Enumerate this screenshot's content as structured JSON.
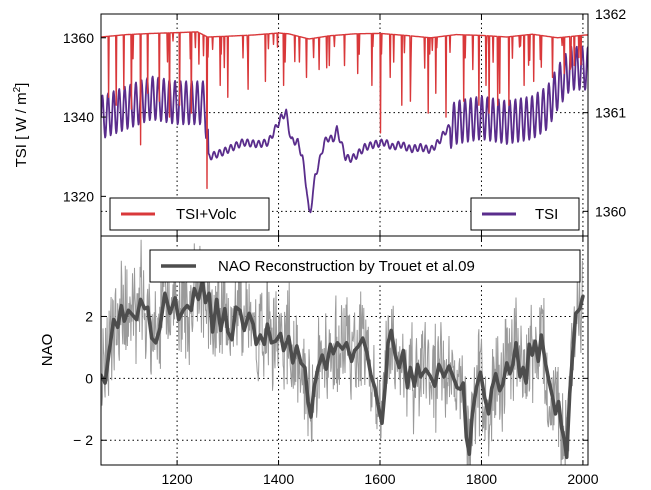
{
  "chart_data": [
    {
      "type": "line",
      "panel": "top",
      "ylabel_left": "TSI [ W / m",
      "ylabel_left_sup": "2",
      "ylabel_left_end": "]",
      "xlim": [
        1050,
        2010
      ],
      "ylim_left": [
        1310,
        1366
      ],
      "left_ticks": [
        1320,
        1340,
        1360
      ],
      "ylim_right": [
        1359.75,
        1362.0
      ],
      "right_ticks": [
        1360,
        1361,
        1362
      ],
      "grid": true,
      "legend": [
        {
          "label": "TSI+Volc",
          "placement": "lower-left"
        },
        {
          "label": "TSI",
          "placement": "lower-right"
        }
      ],
      "series": [
        {
          "name": "TSI+Volc",
          "axis": "left",
          "color": "#d9383a",
          "baseline": [
            [
              1050,
              1360.2
            ],
            [
              1100,
              1360.8
            ],
            [
              1150,
              1361.1
            ],
            [
              1200,
              1361.3
            ],
            [
              1240,
              1361.5
            ],
            [
              1260,
              1360.2
            ],
            [
              1300,
              1360.4
            ],
            [
              1350,
              1360.7
            ],
            [
              1400,
              1361.2
            ],
            [
              1420,
              1361.0
            ],
            [
              1460,
              1359.7
            ],
            [
              1500,
              1360.5
            ],
            [
              1550,
              1361.0
            ],
            [
              1600,
              1361.1
            ],
            [
              1650,
              1360.6
            ],
            [
              1700,
              1360.0
            ],
            [
              1750,
              1360.8
            ],
            [
              1800,
              1360.6
            ],
            [
              1850,
              1360.2
            ],
            [
              1900,
              1360.9
            ],
            [
              1950,
              1360.0
            ],
            [
              2005,
              1360.7
            ]
          ],
          "dips": [
            [
              1065,
              1345
            ],
            [
              1080,
              1343
            ],
            [
              1095,
              1347
            ],
            [
              1110,
              1342
            ],
            [
              1128,
              1333
            ],
            [
              1142,
              1346
            ],
            [
              1165,
              1344
            ],
            [
              1185,
              1340
            ],
            [
              1205,
              1343
            ],
            [
              1228,
              1341
            ],
            [
              1259,
              1322
            ],
            [
              1285,
              1348
            ],
            [
              1300,
              1345
            ],
            [
              1340,
              1347
            ],
            [
              1374,
              1349
            ],
            [
              1410,
              1348
            ],
            [
              1432,
              1354
            ],
            [
              1455,
              1350
            ],
            [
              1469,
              1355
            ],
            [
              1480,
              1352
            ],
            [
              1500,
              1353
            ],
            [
              1530,
              1353
            ],
            [
              1556,
              1351
            ],
            [
              1584,
              1348
            ],
            [
              1601,
              1336
            ],
            [
              1620,
              1350
            ],
            [
              1643,
              1343
            ],
            [
              1660,
              1344
            ],
            [
              1695,
              1341
            ],
            [
              1710,
              1346
            ],
            [
              1730,
              1340
            ],
            [
              1765,
              1344
            ],
            [
              1783,
              1352
            ],
            [
              1795,
              1343
            ],
            [
              1809,
              1348
            ],
            [
              1815,
              1341
            ],
            [
              1832,
              1343
            ],
            [
              1836,
              1346
            ],
            [
              1854,
              1343
            ],
            [
              1884,
              1348
            ],
            [
              1903,
              1349
            ],
            [
              1940,
              1350
            ],
            [
              1963,
              1351
            ],
            [
              1975,
              1352
            ],
            [
              1983,
              1353
            ],
            [
              1992,
              1355
            ]
          ]
        },
        {
          "name": "TSI",
          "axis": "right",
          "color": "#5a2d8c",
          "points": [
            [
              1050,
              1360.95
            ],
            [
              1100,
              1361.05
            ],
            [
              1150,
              1361.15
            ],
            [
              1200,
              1361.1
            ],
            [
              1255,
              1361.1
            ],
            [
              1262,
              1360.55
            ],
            [
              1290,
              1360.6
            ],
            [
              1330,
              1360.7
            ],
            [
              1360,
              1360.68
            ],
            [
              1380,
              1360.7
            ],
            [
              1395,
              1360.85
            ],
            [
              1405,
              1360.95
            ],
            [
              1415,
              1361.0
            ],
            [
              1420,
              1360.85
            ],
            [
              1425,
              1360.72
            ],
            [
              1438,
              1360.7
            ],
            [
              1447,
              1360.55
            ],
            [
              1455,
              1360.25
            ],
            [
              1460,
              1359.98
            ],
            [
              1463,
              1360.0
            ],
            [
              1472,
              1360.35
            ],
            [
              1483,
              1360.55
            ],
            [
              1490,
              1360.7
            ],
            [
              1500,
              1360.75
            ],
            [
              1507,
              1360.72
            ],
            [
              1515,
              1360.83
            ],
            [
              1523,
              1360.7
            ],
            [
              1532,
              1360.55
            ],
            [
              1540,
              1360.53
            ],
            [
              1550,
              1360.55
            ],
            [
              1570,
              1360.65
            ],
            [
              1590,
              1360.68
            ],
            [
              1610,
              1360.7
            ],
            [
              1625,
              1360.65
            ],
            [
              1640,
              1360.68
            ],
            [
              1660,
              1360.63
            ],
            [
              1680,
              1360.65
            ],
            [
              1700,
              1360.62
            ],
            [
              1715,
              1360.7
            ],
            [
              1730,
              1360.82
            ],
            [
              1750,
              1360.9
            ],
            [
              1800,
              1360.95
            ],
            [
              1850,
              1360.9
            ],
            [
              1900,
              1360.95
            ],
            [
              1930,
              1361.05
            ],
            [
              1950,
              1361.25
            ],
            [
              1975,
              1361.45
            ],
            [
              2005,
              1361.45
            ]
          ]
        }
      ]
    },
    {
      "type": "line",
      "panel": "bottom",
      "ylabel": "NAO",
      "xlim": [
        1050,
        2010
      ],
      "ylim": [
        -2.8,
        4.6
      ],
      "y_ticks": [
        -2,
        0,
        2
      ],
      "y_tick_labels": [
        "− 2",
        "0",
        "2"
      ],
      "x_ticks": [
        1200,
        1400,
        1600,
        1800,
        2000
      ],
      "grid": true,
      "legend": [
        {
          "label": "NAO Reconstruction by Trouet et al.09",
          "placement": "top"
        }
      ],
      "series": [
        {
          "name": "NAO Reconstruction by Trouet et al.09",
          "color": "#4d4d4d",
          "points": [
            [
              1050,
              0.1
            ],
            [
              1058,
              -0.15
            ],
            [
              1066,
              0.85
            ],
            [
              1075,
              1.9
            ],
            [
              1083,
              1.65
            ],
            [
              1090,
              2.35
            ],
            [
              1096,
              1.85
            ],
            [
              1104,
              2.2
            ],
            [
              1112,
              2.05
            ],
            [
              1120,
              1.9
            ],
            [
              1128,
              2.55
            ],
            [
              1136,
              2.25
            ],
            [
              1142,
              2.3
            ],
            [
              1150,
              1.3
            ],
            [
              1158,
              1.15
            ],
            [
              1166,
              1.6
            ],
            [
              1176,
              2.75
            ],
            [
              1186,
              2.1
            ],
            [
              1196,
              2.6
            ],
            [
              1203,
              1.9
            ],
            [
              1212,
              2.2
            ],
            [
              1220,
              2.35
            ],
            [
              1228,
              2.2
            ],
            [
              1234,
              2.9
            ],
            [
              1242,
              2.55
            ],
            [
              1250,
              3.15
            ],
            [
              1256,
              2.45
            ],
            [
              1263,
              2.75
            ],
            [
              1270,
              1.5
            ],
            [
              1278,
              2.55
            ],
            [
              1286,
              1.55
            ],
            [
              1294,
              2.25
            ],
            [
              1300,
              1.5
            ],
            [
              1308,
              1.25
            ],
            [
              1316,
              2.3
            ],
            [
              1324,
              2.2
            ],
            [
              1332,
              1.55
            ],
            [
              1342,
              2.1
            ],
            [
              1350,
              1.75
            ],
            [
              1356,
              1.1
            ],
            [
              1364,
              1.4
            ],
            [
              1372,
              1.1
            ],
            [
              1378,
              1.75
            ],
            [
              1386,
              1.15
            ],
            [
              1394,
              1.2
            ],
            [
              1404,
              1.45
            ],
            [
              1410,
              0.9
            ],
            [
              1420,
              1.35
            ],
            [
              1428,
              0.5
            ],
            [
              1436,
              1.05
            ],
            [
              1444,
              0.5
            ],
            [
              1452,
              0.35
            ],
            [
              1458,
              -0.75
            ],
            [
              1464,
              -1.25
            ],
            [
              1470,
              -0.3
            ],
            [
              1478,
              0.35
            ],
            [
              1486,
              0.75
            ],
            [
              1494,
              0.3
            ],
            [
              1502,
              1.1
            ],
            [
              1508,
              0.8
            ],
            [
              1516,
              1.15
            ],
            [
              1526,
              0.95
            ],
            [
              1534,
              1.15
            ],
            [
              1544,
              0.55
            ],
            [
              1550,
              0.9
            ],
            [
              1558,
              1.05
            ],
            [
              1566,
              1.3
            ],
            [
              1574,
              0.85
            ],
            [
              1582,
              0.1
            ],
            [
              1590,
              -0.3
            ],
            [
              1596,
              -0.85
            ],
            [
              1604,
              -1.45
            ],
            [
              1610,
              -0.3
            ],
            [
              1616,
              1.15
            ],
            [
              1622,
              1.55
            ],
            [
              1630,
              0.75
            ],
            [
              1638,
              0.35
            ],
            [
              1646,
              0.9
            ],
            [
              1654,
              -0.3
            ],
            [
              1660,
              0.35
            ],
            [
              1668,
              -0.25
            ],
            [
              1674,
              0.45
            ],
            [
              1680,
              0.05
            ],
            [
              1690,
              0.3
            ],
            [
              1700,
              0.05
            ],
            [
              1708,
              -0.25
            ],
            [
              1716,
              0.45
            ],
            [
              1726,
              0.05
            ],
            [
              1736,
              0.4
            ],
            [
              1744,
              0.05
            ],
            [
              1752,
              -0.3
            ],
            [
              1758,
              -0.35
            ],
            [
              1764,
              -0.15
            ],
            [
              1770,
              -1.9
            ],
            [
              1776,
              -2.45
            ],
            [
              1782,
              -1.15
            ],
            [
              1790,
              -0.3
            ],
            [
              1798,
              0.2
            ],
            [
              1806,
              -0.6
            ],
            [
              1814,
              -1.15
            ],
            [
              1820,
              -0.35
            ],
            [
              1828,
              0.15
            ],
            [
              1836,
              -0.4
            ],
            [
              1842,
              -0.2
            ],
            [
              1850,
              0.5
            ],
            [
              1856,
              0.15
            ],
            [
              1862,
              0.45
            ],
            [
              1868,
              1.15
            ],
            [
              1876,
              0.05
            ],
            [
              1882,
              0.35
            ],
            [
              1888,
              -0.15
            ],
            [
              1894,
              1.1
            ],
            [
              1900,
              0.75
            ],
            [
              1906,
              1.2
            ],
            [
              1912,
              0.55
            ],
            [
              1918,
              1.4
            ],
            [
              1926,
              0.5
            ],
            [
              1934,
              -0.15
            ],
            [
              1940,
              -0.6
            ],
            [
              1946,
              -1.15
            ],
            [
              1952,
              -0.75
            ],
            [
              1958,
              -1.6
            ],
            [
              1963,
              -1.95
            ],
            [
              1968,
              -2.55
            ],
            [
              1974,
              -0.5
            ],
            [
              1980,
              0.85
            ],
            [
              1986,
              2.1
            ],
            [
              1994,
              2.25
            ],
            [
              2000,
              2.65
            ]
          ]
        }
      ]
    }
  ]
}
